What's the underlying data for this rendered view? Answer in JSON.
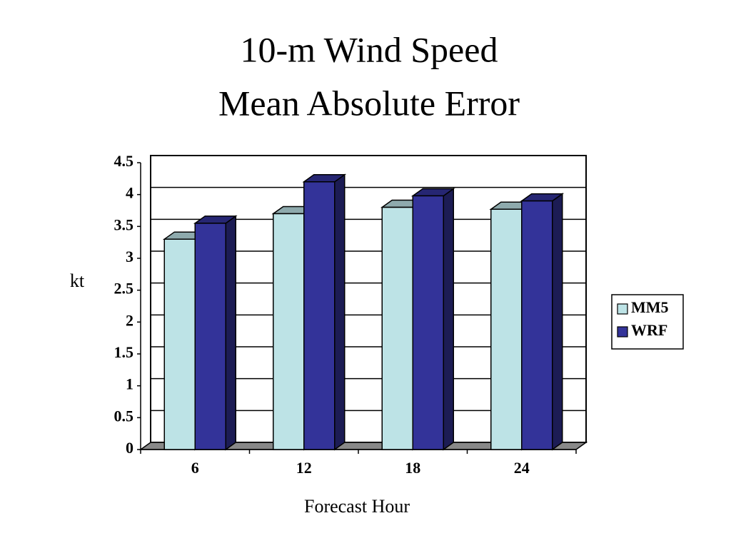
{
  "chart_data": {
    "type": "bar3d",
    "title": [
      "10-m Wind Speed",
      "Mean Absolute Error"
    ],
    "x_label": "Forecast Hour",
    "y_label": "kt",
    "categories": [
      "6",
      "12",
      "18",
      "24"
    ],
    "series": [
      {
        "name": "MM5",
        "color": "#bde3e6",
        "values": [
          3.3,
          3.7,
          3.8,
          3.77
        ]
      },
      {
        "name": "WRF",
        "color": "#333399",
        "values": [
          3.55,
          4.2,
          3.98,
          3.9
        ]
      }
    ],
    "ylim": [
      0,
      4.5
    ],
    "yticks": [
      0,
      0.5,
      1,
      1.5,
      2,
      2.5,
      3,
      3.5,
      4,
      4.5
    ],
    "grid": true,
    "legend": "right"
  }
}
